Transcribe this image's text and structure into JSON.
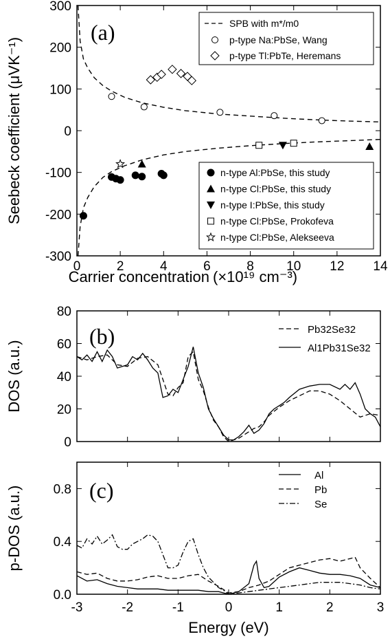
{
  "chart_data": [
    {
      "type": "scatter",
      "panel_label": "(a)",
      "xlabel": "Carrier concentration",
      "xlabel_unit": "(×10¹⁹ cm⁻³)",
      "ylabel": "Seebeck coefficient (μVK⁻¹)",
      "xlim": [
        0,
        14
      ],
      "ylim": [
        -300,
        300
      ],
      "xticks": [
        0,
        2,
        4,
        6,
        8,
        10,
        12,
        14
      ],
      "yticks": [
        -300,
        -200,
        -100,
        0,
        100,
        200,
        300
      ],
      "legend_top": "top-right",
      "legend_bottom": "bottom-right",
      "model_curves": [
        {
          "name": "SPB with m*/m0",
          "x": [
            0.05,
            0.15,
            0.3,
            0.5,
            0.8,
            1.2,
            1.6,
            2.2,
            3,
            4,
            5,
            6.5,
            8,
            9.5,
            11,
            12.5,
            14
          ],
          "y": [
            300,
            215,
            172,
            150,
            127,
            108,
            95,
            80,
            67,
            56,
            48,
            40,
            35,
            30,
            26,
            23,
            21
          ]
        },
        {
          "name": "",
          "x": [
            0.05,
            0.15,
            0.3,
            0.5,
            0.8,
            1.2,
            1.6,
            2.2,
            3,
            4,
            5,
            6.5,
            8,
            9.5,
            11,
            12.5,
            14
          ],
          "y": [
            -300,
            -230,
            -185,
            -160,
            -134,
            -112,
            -98,
            -84,
            -70,
            -58,
            -50,
            -42,
            -36,
            -31,
            -27,
            -24,
            -21
          ]
        }
      ],
      "series": [
        {
          "name": "p-type Na:PbSe, Wang",
          "marker": "circle-open",
          "x": [
            1.6,
            3.1,
            6.6,
            9.1,
            11.3
          ],
          "y": [
            82,
            57,
            44,
            36,
            24
          ]
        },
        {
          "name": "p-type Tl:PbTe, Heremans",
          "marker": "diamond-open",
          "x": [
            3.4,
            3.7,
            3.9,
            4.4,
            4.8,
            5.1,
            5.3
          ],
          "y": [
            122,
            128,
            135,
            147,
            137,
            130,
            120
          ]
        },
        {
          "name": "n-type Al:PbSe, this study",
          "marker": "circle-filled",
          "x": [
            0.3,
            1.6,
            1.8,
            2.0,
            2.7,
            3.0,
            3.9,
            4.0
          ],
          "y": [
            -204,
            -111,
            -115,
            -118,
            -107,
            -110,
            -103,
            -107
          ]
        },
        {
          "name": "n-type Cl:PbSe, this study",
          "marker": "triangle-up-filled",
          "x": [
            3.0,
            13.5
          ],
          "y": [
            -80,
            -38
          ]
        },
        {
          "name": "n-type I:PbSe, this study",
          "marker": "triangle-down-filled",
          "x": [
            9.5
          ],
          "y": [
            -35
          ]
        },
        {
          "name": "n-type Cl:PbSe, Prokofeva",
          "marker": "square-open",
          "x": [
            8.4,
            10.0
          ],
          "y": [
            -35,
            -30
          ]
        },
        {
          "name": "n-type Cl:PbSe, Alekseeva",
          "marker": "star-open",
          "x": [
            2.0
          ],
          "y": [
            -80
          ]
        }
      ]
    },
    {
      "type": "line",
      "panel_label": "(b)",
      "ylabel": "DOS (a.u.)",
      "xlim": [
        -3,
        3
      ],
      "ylim": [
        0,
        80
      ],
      "yticks": [
        0,
        20,
        40,
        60,
        80
      ],
      "legend": "top-right",
      "series": [
        {
          "name": "Pb32Se32",
          "style": "dashed",
          "x": [
            -3,
            -2.8,
            -2.6,
            -2.4,
            -2.2,
            -2.0,
            -1.8,
            -1.6,
            -1.4,
            -1.2,
            -1.1,
            -1.0,
            -0.9,
            -0.8,
            -0.7,
            -0.6,
            -0.5,
            -0.4,
            -0.3,
            -0.2,
            -0.1,
            0,
            0.1,
            0.2,
            0.3,
            0.4,
            0.5,
            0.6,
            0.7,
            0.8,
            1.0,
            1.2,
            1.4,
            1.6,
            1.8,
            2.0,
            2.2,
            2.4,
            2.6,
            2.8,
            3.0
          ],
          "y": [
            52,
            50,
            52,
            53,
            47,
            46,
            51,
            52,
            47,
            29,
            28,
            33,
            36,
            52,
            55,
            38,
            31,
            21,
            13,
            9,
            3,
            0,
            1,
            2,
            4,
            6,
            8,
            9,
            12,
            16,
            21,
            25,
            28,
            31,
            31,
            29,
            25,
            20,
            15,
            17,
            16
          ]
        },
        {
          "name": "Al1Pb31Se32",
          "style": "solid",
          "x": [
            -3,
            -2.9,
            -2.8,
            -2.7,
            -2.6,
            -2.5,
            -2.4,
            -2.3,
            -2.2,
            -2.1,
            -2.0,
            -1.9,
            -1.8,
            -1.7,
            -1.6,
            -1.5,
            -1.4,
            -1.3,
            -1.2,
            -1.1,
            -1.0,
            -0.9,
            -0.8,
            -0.7,
            -0.6,
            -0.5,
            -0.4,
            -0.3,
            -0.2,
            -0.1,
            0,
            0.1,
            0.2,
            0.3,
            0.4,
            0.5,
            0.6,
            0.7,
            0.8,
            0.9,
            1.0,
            1.1,
            1.2,
            1.4,
            1.6,
            1.8,
            2.0,
            2.2,
            2.3,
            2.4,
            2.5,
            2.6,
            2.7,
            2.8,
            2.9,
            3.0
          ],
          "y": [
            52,
            50,
            53,
            49,
            55,
            49,
            56,
            52,
            45,
            46,
            47,
            52,
            50,
            54,
            50,
            45,
            42,
            27,
            28,
            32,
            30,
            38,
            46,
            58,
            42,
            33,
            20,
            14,
            9,
            4,
            1,
            1,
            3,
            6,
            10,
            5,
            7,
            11,
            17,
            20,
            22,
            24,
            27,
            32,
            34,
            35,
            35,
            32,
            35,
            32,
            36,
            29,
            20,
            17,
            15,
            9
          ]
        }
      ]
    },
    {
      "type": "line",
      "panel_label": "(c)",
      "xlabel": "Energy (eV)",
      "ylabel": "p-DOS (a.u.)",
      "xlim": [
        -3,
        3
      ],
      "ylim": [
        0,
        1.0
      ],
      "xticks": [
        -3,
        -2,
        -1,
        0,
        1,
        2,
        3
      ],
      "yticks": [
        0.0,
        0.4,
        0.8
      ],
      "legend": "top-right",
      "series": [
        {
          "name": "Al",
          "style": "solid",
          "x": [
            -3,
            -2.8,
            -2.6,
            -2.4,
            -2.2,
            -2.0,
            -1.8,
            -1.6,
            -1.4,
            -1.2,
            -1.0,
            -0.8,
            -0.6,
            -0.4,
            -0.2,
            0,
            0.2,
            0.4,
            0.5,
            0.55,
            0.6,
            0.7,
            0.8,
            1.0,
            1.2,
            1.4,
            1.6,
            1.8,
            2.0,
            2.2,
            2.4,
            2.6,
            2.8,
            3.0
          ],
          "y": [
            0.14,
            0.1,
            0.11,
            0.08,
            0.06,
            0.05,
            0.04,
            0.04,
            0.04,
            0.03,
            0.03,
            0.03,
            0.03,
            0.02,
            0.02,
            0.0,
            0.02,
            0.08,
            0.22,
            0.25,
            0.12,
            0.05,
            0.06,
            0.13,
            0.17,
            0.2,
            0.18,
            0.16,
            0.15,
            0.15,
            0.14,
            0.12,
            0.07,
            0.05
          ]
        },
        {
          "name": "Pb",
          "style": "dashed",
          "x": [
            -3,
            -2.8,
            -2.6,
            -2.4,
            -2.2,
            -2.0,
            -1.8,
            -1.6,
            -1.4,
            -1.2,
            -1.0,
            -0.8,
            -0.6,
            -0.4,
            -0.2,
            0,
            0.2,
            0.4,
            0.6,
            0.8,
            1.0,
            1.2,
            1.4,
            1.6,
            1.8,
            2.0,
            2.2,
            2.4,
            2.5,
            2.6,
            2.8,
            3.0
          ],
          "y": [
            0.17,
            0.15,
            0.16,
            0.12,
            0.1,
            0.1,
            0.11,
            0.13,
            0.14,
            0.12,
            0.12,
            0.14,
            0.15,
            0.1,
            0.06,
            0.01,
            0.02,
            0.05,
            0.07,
            0.1,
            0.15,
            0.2,
            0.22,
            0.24,
            0.26,
            0.27,
            0.25,
            0.27,
            0.28,
            0.2,
            0.12,
            0.05
          ]
        },
        {
          "name": "Se",
          "style": "dashdot",
          "x": [
            -3,
            -2.9,
            -2.8,
            -2.7,
            -2.6,
            -2.5,
            -2.4,
            -2.3,
            -2.2,
            -2.1,
            -2.0,
            -1.9,
            -1.8,
            -1.7,
            -1.6,
            -1.5,
            -1.4,
            -1.3,
            -1.2,
            -1.1,
            -1.0,
            -0.9,
            -0.8,
            -0.7,
            -0.6,
            -0.5,
            -0.4,
            -0.3,
            -0.2,
            -0.1,
            0,
            0.2,
            0.4,
            0.6,
            0.8,
            1.0,
            1.2,
            1.4,
            1.6,
            1.8,
            2.0,
            2.2,
            2.4,
            2.6,
            2.8,
            3.0
          ],
          "y": [
            0.37,
            0.35,
            0.42,
            0.38,
            0.44,
            0.38,
            0.41,
            0.45,
            0.36,
            0.34,
            0.34,
            0.38,
            0.4,
            0.42,
            0.45,
            0.44,
            0.4,
            0.3,
            0.2,
            0.2,
            0.22,
            0.32,
            0.4,
            0.42,
            0.3,
            0.2,
            0.13,
            0.09,
            0.05,
            0.03,
            0.0,
            0.01,
            0.02,
            0.03,
            0.04,
            0.05,
            0.06,
            0.07,
            0.08,
            0.09,
            0.09,
            0.09,
            0.08,
            0.07,
            0.05,
            0.04
          ]
        }
      ]
    }
  ]
}
